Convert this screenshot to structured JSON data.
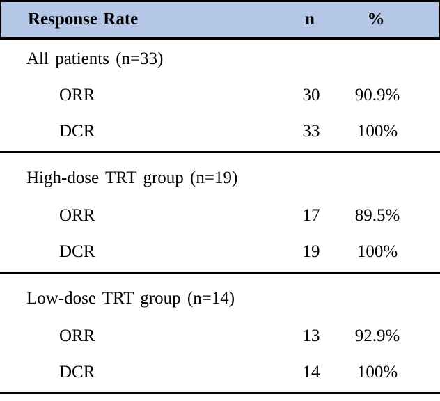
{
  "table": {
    "header_bg": "#b4c7e7",
    "header": {
      "label": "Response Rate",
      "col_n": "n",
      "col_pct": "%"
    },
    "sections": [
      {
        "label": "All patients (n=33)",
        "rows": [
          {
            "name": "ORR",
            "n": "30",
            "pct": "90.9%"
          },
          {
            "name": "DCR",
            "n": "33",
            "pct": "100%"
          }
        ]
      },
      {
        "label": "High-dose TRT group (n=19)",
        "rows": [
          {
            "name": "ORR",
            "n": "17",
            "pct": "89.5%"
          },
          {
            "name": "DCR",
            "n": "19",
            "pct": "100%"
          }
        ]
      },
      {
        "label": "Low-dose TRT group (n=14)",
        "rows": [
          {
            "name": "ORR",
            "n": "13",
            "pct": "92.9%"
          },
          {
            "name": "DCR",
            "n": "14",
            "pct": "100%"
          }
        ]
      }
    ]
  }
}
